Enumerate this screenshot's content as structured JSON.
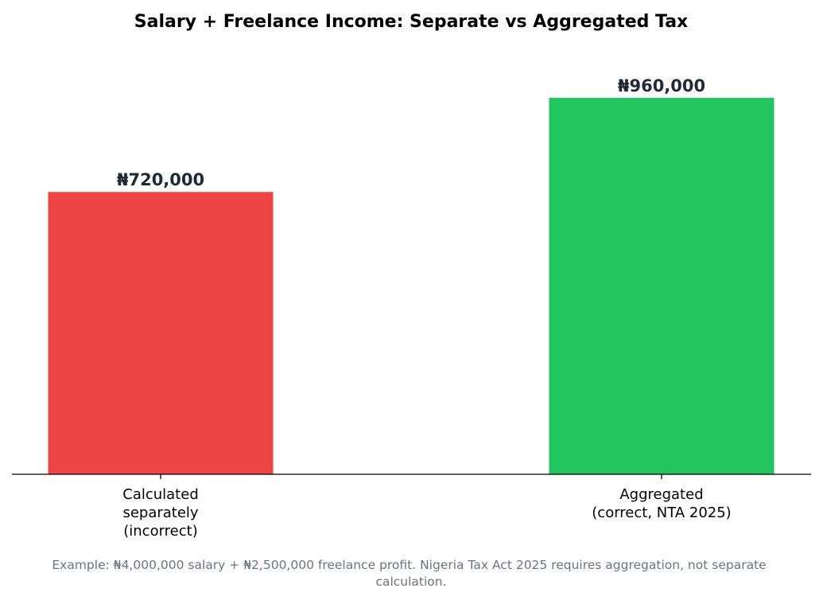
{
  "chart_data": {
    "type": "bar",
    "title": "Salary + Freelance Income: Separate vs Aggregated Tax",
    "categories": [
      [
        "Calculated",
        "separately",
        "(incorrect)"
      ],
      [
        "Aggregated",
        "(correct, NTA 2025)"
      ]
    ],
    "values": [
      720000,
      960000
    ],
    "value_labels": [
      "₦720,000",
      "₦960,000"
    ],
    "colors": [
      "#ef4444",
      "#22c55e"
    ],
    "ylim": [
      0,
      1100000
    ],
    "xlabel": "",
    "ylabel": "",
    "grid": false,
    "footnote": [
      "Example: ₦4,000,000 salary + ₦2,500,000 freelance profit. Nigeria Tax Act 2025 requires aggregation, not separate",
      "calculation."
    ]
  }
}
